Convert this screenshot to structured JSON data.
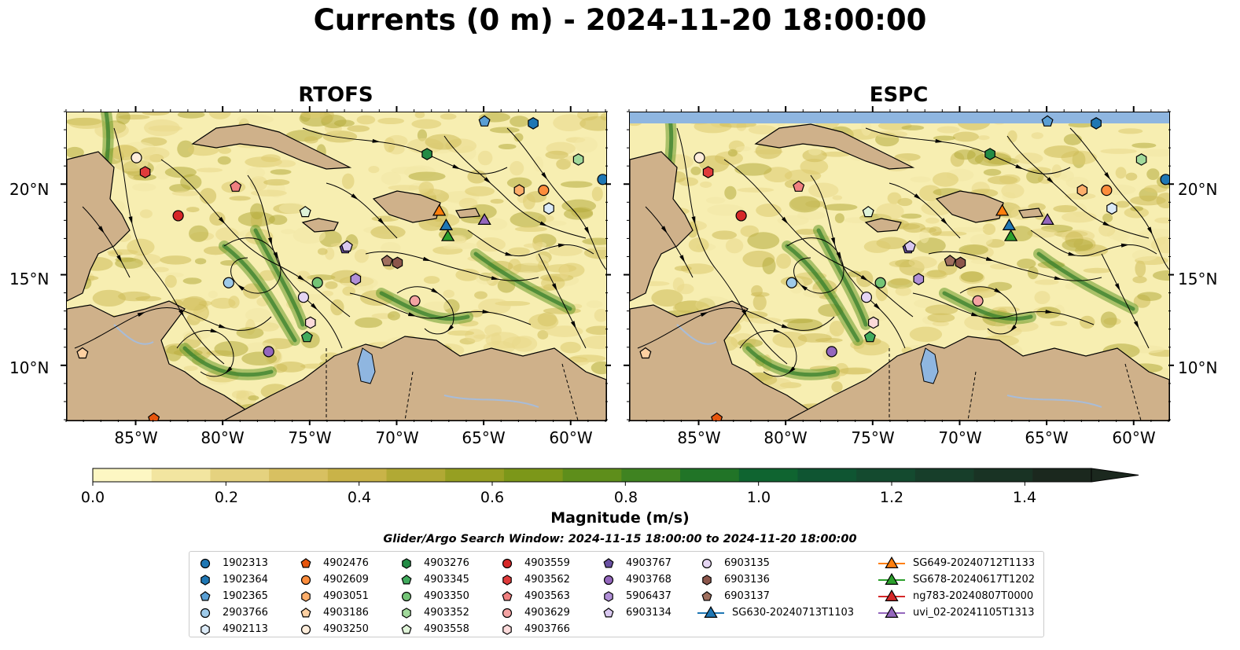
{
  "title": "Currents (0 m) - 2024-11-20 18:00:00",
  "panels": [
    {
      "title": "RTOFS"
    },
    {
      "title": "ESPC"
    }
  ],
  "map": {
    "lon_range": [
      -89,
      -58
    ],
    "lat_range": [
      7,
      24
    ],
    "lat_ticks": [
      {
        "label": "20°N",
        "value": 20
      },
      {
        "label": "15°N",
        "value": 15
      },
      {
        "label": "10°N",
        "value": 10
      }
    ],
    "lon_ticks": [
      {
        "label": "85°W",
        "value": -85
      },
      {
        "label": "80°W",
        "value": -80
      },
      {
        "label": "75°W",
        "value": -75
      },
      {
        "label": "70°W",
        "value": -70
      },
      {
        "label": "65°W",
        "value": -65
      },
      {
        "label": "60°W",
        "value": -60
      }
    ],
    "colors": {
      "land": "#cfb18a",
      "ocean_low": "#f7eeb1",
      "lake": "#8fb6e0",
      "ocean_mask": "#8fb6e0"
    }
  },
  "colorbar": {
    "label": "Magnitude (m/s)",
    "range": [
      0.0,
      1.5
    ],
    "extend": "max",
    "ticks": [
      "0.0",
      "0.2",
      "0.4",
      "0.6",
      "0.8",
      "1.0",
      "1.2",
      "1.4"
    ],
    "tick_values": [
      0.0,
      0.2,
      0.4,
      0.6,
      0.8,
      1.0,
      1.2,
      1.4
    ],
    "colors": [
      "#fdf7c3",
      "#f2e5a0",
      "#e5d27f",
      "#d8c061",
      "#c9b348",
      "#b1a934",
      "#969f22",
      "#7c9719",
      "#5e8e1b",
      "#3f8321",
      "#217427",
      "#0f6430",
      "#0f5532",
      "#144a2f",
      "#173e2a",
      "#193324",
      "#1b281e"
    ]
  },
  "search_window": "Glider/Argo Search Window: 2024-11-15 18:00:00 to 2024-11-20 18:00:00",
  "legend": {
    "columns": [
      [
        {
          "label": "1902313",
          "marker": "circle",
          "color": "#1f77b4"
        },
        {
          "label": "1902364",
          "marker": "hexagon",
          "color": "#1f77b4"
        },
        {
          "label": "1902365",
          "marker": "pentagon",
          "color": "#5a9fd4"
        },
        {
          "label": "2903766",
          "marker": "circle",
          "color": "#9ecae9"
        },
        {
          "label": "4902113",
          "marker": "hexagon",
          "color": "#dbeaf7"
        }
      ],
      [
        {
          "label": "4902476",
          "marker": "pentagon",
          "color": "#e6550d"
        },
        {
          "label": "4902609",
          "marker": "circle",
          "color": "#fd8d3c"
        },
        {
          "label": "4903051",
          "marker": "hexagon",
          "color": "#fdae6b"
        },
        {
          "label": "4903186",
          "marker": "pentagon",
          "color": "#fdd0a2"
        },
        {
          "label": "4903250",
          "marker": "circle",
          "color": "#feeddb"
        }
      ],
      [
        {
          "label": "4903276",
          "marker": "hexagon",
          "color": "#238b45"
        },
        {
          "label": "4903345",
          "marker": "pentagon",
          "color": "#41ab5d"
        },
        {
          "label": "4903350",
          "marker": "circle",
          "color": "#74c476"
        },
        {
          "label": "4903352",
          "marker": "hexagon",
          "color": "#a1d99b"
        },
        {
          "label": "4903558",
          "marker": "pentagon",
          "color": "#dff3d8"
        }
      ],
      [
        {
          "label": "4903559",
          "marker": "circle",
          "color": "#d62728"
        },
        {
          "label": "4903562",
          "marker": "hexagon",
          "color": "#e03b3b"
        },
        {
          "label": "4903563",
          "marker": "pentagon",
          "color": "#f08080"
        },
        {
          "label": "4903629",
          "marker": "circle",
          "color": "#f4a3a3"
        },
        {
          "label": "4903766",
          "marker": "hexagon",
          "color": "#fcdada"
        }
      ],
      [
        {
          "label": "4903767",
          "marker": "pentagon",
          "color": "#6a51a3"
        },
        {
          "label": "4903768",
          "marker": "circle",
          "color": "#9467bd"
        },
        {
          "label": "5906437",
          "marker": "hexagon",
          "color": "#b08fd6"
        },
        {
          "label": "6903134",
          "marker": "pentagon",
          "color": "#d9c8f0"
        }
      ],
      [
        {
          "label": "6903135",
          "marker": "circle",
          "color": "#e5d5f3"
        },
        {
          "label": "6903136",
          "marker": "hexagon",
          "color": "#8c564b"
        },
        {
          "label": "6903137",
          "marker": "pentagon",
          "color": "#a0705f"
        },
        {
          "label": "SG630-20240713T1103",
          "marker": "triangle-line",
          "color": "#1f77b4"
        }
      ],
      [
        {
          "label": "SG649-20240712T1133",
          "marker": "triangle-line",
          "color": "#ff7f0e"
        },
        {
          "label": "SG678-20240617T1202",
          "marker": "triangle-line",
          "color": "#2ca02c"
        },
        {
          "label": "ng783-20240807T0000",
          "marker": "triangle-line",
          "color": "#d62728"
        },
        {
          "label": "uvi_02-20241105T1313",
          "marker": "triangle-line",
          "color": "#9467bd"
        }
      ]
    ]
  },
  "markers": [
    {
      "id": "1902313",
      "lon": -58.2,
      "lat": 20.3,
      "marker": "circle",
      "color": "#1f77b4"
    },
    {
      "id": "1902364",
      "lon": -62.2,
      "lat": 23.4,
      "marker": "hexagon",
      "color": "#1f77b4"
    },
    {
      "id": "1902365",
      "lon": -65.0,
      "lat": 23.5,
      "marker": "pentagon",
      "color": "#5a9fd4"
    },
    {
      "id": "2903766",
      "lon": -79.7,
      "lat": 14.6,
      "marker": "circle",
      "color": "#9ecae9"
    },
    {
      "id": "4902113",
      "lon": -61.3,
      "lat": 18.7,
      "marker": "hexagon",
      "color": "#dbeaf7"
    },
    {
      "id": "4902476",
      "lon": -84.0,
      "lat": 7.1,
      "marker": "pentagon",
      "color": "#e6550d"
    },
    {
      "id": "4902609",
      "lon": -61.6,
      "lat": 19.7,
      "marker": "circle",
      "color": "#fd8d3c"
    },
    {
      "id": "4903051",
      "lon": -63.0,
      "lat": 19.7,
      "marker": "hexagon",
      "color": "#fdae6b"
    },
    {
      "id": "4903186",
      "lon": -88.1,
      "lat": 10.7,
      "marker": "pentagon",
      "color": "#fdd0a2"
    },
    {
      "id": "4903250",
      "lon": -85.0,
      "lat": 21.5,
      "marker": "circle",
      "color": "#feeddb"
    },
    {
      "id": "4903276",
      "lon": -68.3,
      "lat": 21.7,
      "marker": "hexagon",
      "color": "#238b45"
    },
    {
      "id": "4903345",
      "lon": -75.2,
      "lat": 11.6,
      "marker": "pentagon",
      "color": "#41ab5d"
    },
    {
      "id": "4903350",
      "lon": -74.6,
      "lat": 14.6,
      "marker": "circle",
      "color": "#74c476"
    },
    {
      "id": "4903352",
      "lon": -59.6,
      "lat": 21.4,
      "marker": "hexagon",
      "color": "#a1d99b"
    },
    {
      "id": "4903558",
      "lon": -75.3,
      "lat": 18.5,
      "marker": "pentagon",
      "color": "#dff3d8"
    },
    {
      "id": "4903559",
      "lon": -82.6,
      "lat": 18.3,
      "marker": "circle",
      "color": "#d62728"
    },
    {
      "id": "4903562",
      "lon": -84.5,
      "lat": 20.7,
      "marker": "hexagon",
      "color": "#e03b3b"
    },
    {
      "id": "4903563",
      "lon": -79.3,
      "lat": 19.9,
      "marker": "pentagon",
      "color": "#f08080"
    },
    {
      "id": "4903629",
      "lon": -69.0,
      "lat": 13.6,
      "marker": "circle",
      "color": "#f4a3a3"
    },
    {
      "id": "4903766",
      "lon": -75.0,
      "lat": 12.4,
      "marker": "hexagon",
      "color": "#fcdada"
    },
    {
      "id": "4903767",
      "lon": -73.0,
      "lat": 16.5,
      "marker": "pentagon",
      "color": "#6a51a3"
    },
    {
      "id": "4903768",
      "lon": -77.4,
      "lat": 10.8,
      "marker": "circle",
      "color": "#9467bd"
    },
    {
      "id": "5906437",
      "lon": -72.4,
      "lat": 14.8,
      "marker": "hexagon",
      "color": "#b08fd6"
    },
    {
      "id": "6903134",
      "lon": -72.9,
      "lat": 16.6,
      "marker": "pentagon",
      "color": "#d9c8f0"
    },
    {
      "id": "6903135",
      "lon": -75.4,
      "lat": 13.8,
      "marker": "circle",
      "color": "#e5d5f3"
    },
    {
      "id": "6903136",
      "lon": -70.0,
      "lat": 15.7,
      "marker": "hexagon",
      "color": "#8c564b"
    },
    {
      "id": "6903137",
      "lon": -70.6,
      "lat": 15.8,
      "marker": "pentagon",
      "color": "#a0705f"
    },
    {
      "id": "SG630-20240713T1103",
      "lon": -67.2,
      "lat": 17.8,
      "marker": "triangle",
      "color": "#1f77b4"
    },
    {
      "id": "SG649-20240712T1133",
      "lon": -67.6,
      "lat": 18.6,
      "marker": "triangle",
      "color": "#ff7f0e"
    },
    {
      "id": "SG678-20240617T1202",
      "lon": -67.1,
      "lat": 17.2,
      "marker": "triangle",
      "color": "#2ca02c"
    },
    {
      "id": "uvi_02-20241105T1313",
      "lon": -65.0,
      "lat": 18.1,
      "marker": "triangle",
      "color": "#9467bd"
    }
  ]
}
